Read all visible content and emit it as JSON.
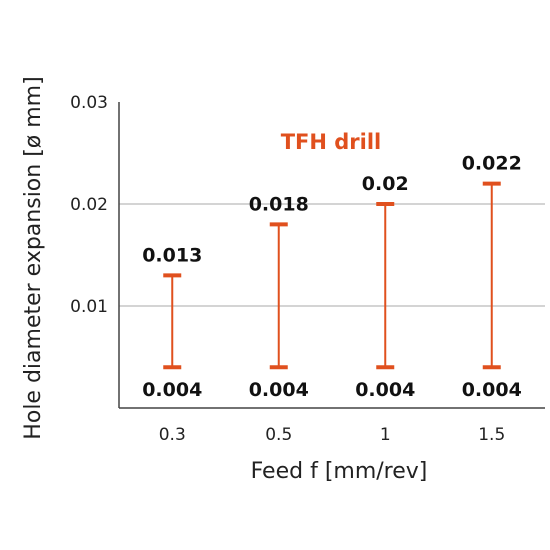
{
  "chart_data": {
    "type": "range-bar",
    "title": "",
    "annotation": "TFH drill",
    "xlabel": "Feed f [mm/rev]",
    "ylabel": "Hole diameter expansion [ø mm]",
    "categories": [
      "0.3",
      "0.5",
      "1",
      "1.5"
    ],
    "series": [
      {
        "name": "TFH drill",
        "low": [
          0.004,
          0.004,
          0.004,
          0.004
        ],
        "high": [
          0.013,
          0.018,
          0.02,
          0.022
        ]
      }
    ],
    "low_labels": [
      "0.004",
      "0.004",
      "0.004",
      "0.004"
    ],
    "high_labels": [
      "0.013",
      "0.018",
      "0.02",
      "0.022"
    ],
    "yticks": [
      0.01,
      0.02,
      0.03
    ],
    "ytick_labels": [
      "0.01",
      "0.02",
      "0.03"
    ],
    "ylim": [
      0,
      0.03
    ],
    "grid": true,
    "colors": {
      "series": "#e0501e",
      "grid": "#bbbbbb",
      "axis": "#444444"
    }
  }
}
